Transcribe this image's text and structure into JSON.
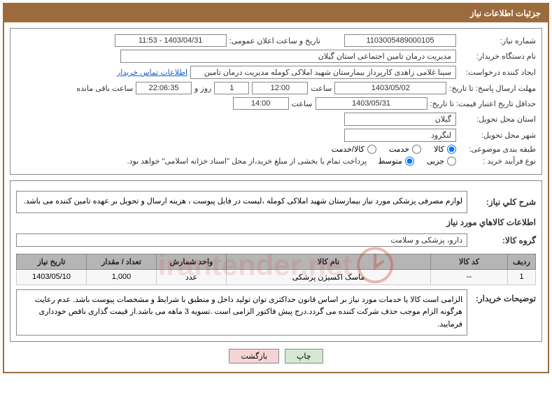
{
  "header": {
    "title": "جزئیات اطلاعات نیاز"
  },
  "form": {
    "request_no_label": "شماره نیاز:",
    "request_no": "1103005489000105",
    "announce_date_label": "تاریخ و ساعت اعلان عمومی:",
    "announce_date": "1403/04/31 - 11:53",
    "buyer_org_label": "نام دستگاه خریدار:",
    "buyer_org": "مدیریت درمان تامین اجتماعی استان گیلان",
    "creator_label": "ایجاد کننده درخواست:",
    "creator": "سینا غلامی زاهدی کارپرداز بیمارستان شهید املاکی کومله مدیریت درمان تامین",
    "contact_link": "اطلاعات تماس خریدار",
    "deadline_label": "مهلت ارسال پاسخ: تا تاریخ:",
    "deadline_date": "1403/05/02",
    "time_label": "ساعت",
    "deadline_time": "12:00",
    "remaining_days": "1",
    "days_and_label": "روز و",
    "remaining_time": "22:06:35",
    "remaining_suffix": "ساعت باقی مانده",
    "validity_label": "حداقل تاریخ اعتبار قیمت: تا تاریخ:",
    "validity_date": "1403/05/31",
    "validity_time": "14:00",
    "province_label": "استان محل تحویل:",
    "province": "گیلان",
    "city_label": "شهر محل تحویل:",
    "city": "لنگرود",
    "category_label": "طبقه بندی موضوعی:",
    "cat_goods": "کالا",
    "cat_service": "خدمت",
    "cat_both": "کالا/خدمت",
    "purchase_type_label": "نوع فرآیند خرید :",
    "pt_small": "جزیی",
    "pt_medium": "متوسط",
    "purchase_note": "پرداخت تمام یا بخشی از مبلغ خرید،از محل \"اسناد خزانه اسلامی\" خواهد بود."
  },
  "desc": {
    "title_label": "شرح کلي نیاز:",
    "text": "لوازم مصرفی پزشکی مورد نیاز بیمارستان شهید املاکی کومله ،لیست در فایل پیوست ، هزینه ارسال و تحویل بر عهده تامین کننده می باشد.",
    "goods_info_title": "اطلاعات کالاهاي مورد نیاز",
    "group_label": "گروه کالا:",
    "group_value": "دارو، پزشکی و سلامت"
  },
  "table": {
    "headers": {
      "row": "ردیف",
      "code": "کد کالا",
      "name": "نام کالا",
      "unit": "واحد شمارش",
      "qty": "تعداد / مقدار",
      "date": "تاریخ نیاز"
    },
    "rows": [
      {
        "row": "1",
        "code": "--",
        "name": "ماسک اکسیژن پزشکی",
        "unit": "عدد",
        "qty": "1,000",
        "date": "1403/05/10"
      }
    ]
  },
  "buyer_note": {
    "label": "توضیحات خریدار:",
    "text": "الزامی است کالا یا خدمات مورد نیاز بر اساس قانون حداکثری توان تولید داخل و منطبق با شرایط و مشخصات پیوست باشد. عدم رعایت هرگونه الزام موجب حذف شرکت کننده می گردد.درج پیش فاکتور الزامی است .تسویه 3 ماهه می باشد.از قیمت گذاری ناقص خودداری فرمایید."
  },
  "buttons": {
    "print": "چاپ",
    "back": "بازگشت"
  },
  "watermark": "irantender.net"
}
